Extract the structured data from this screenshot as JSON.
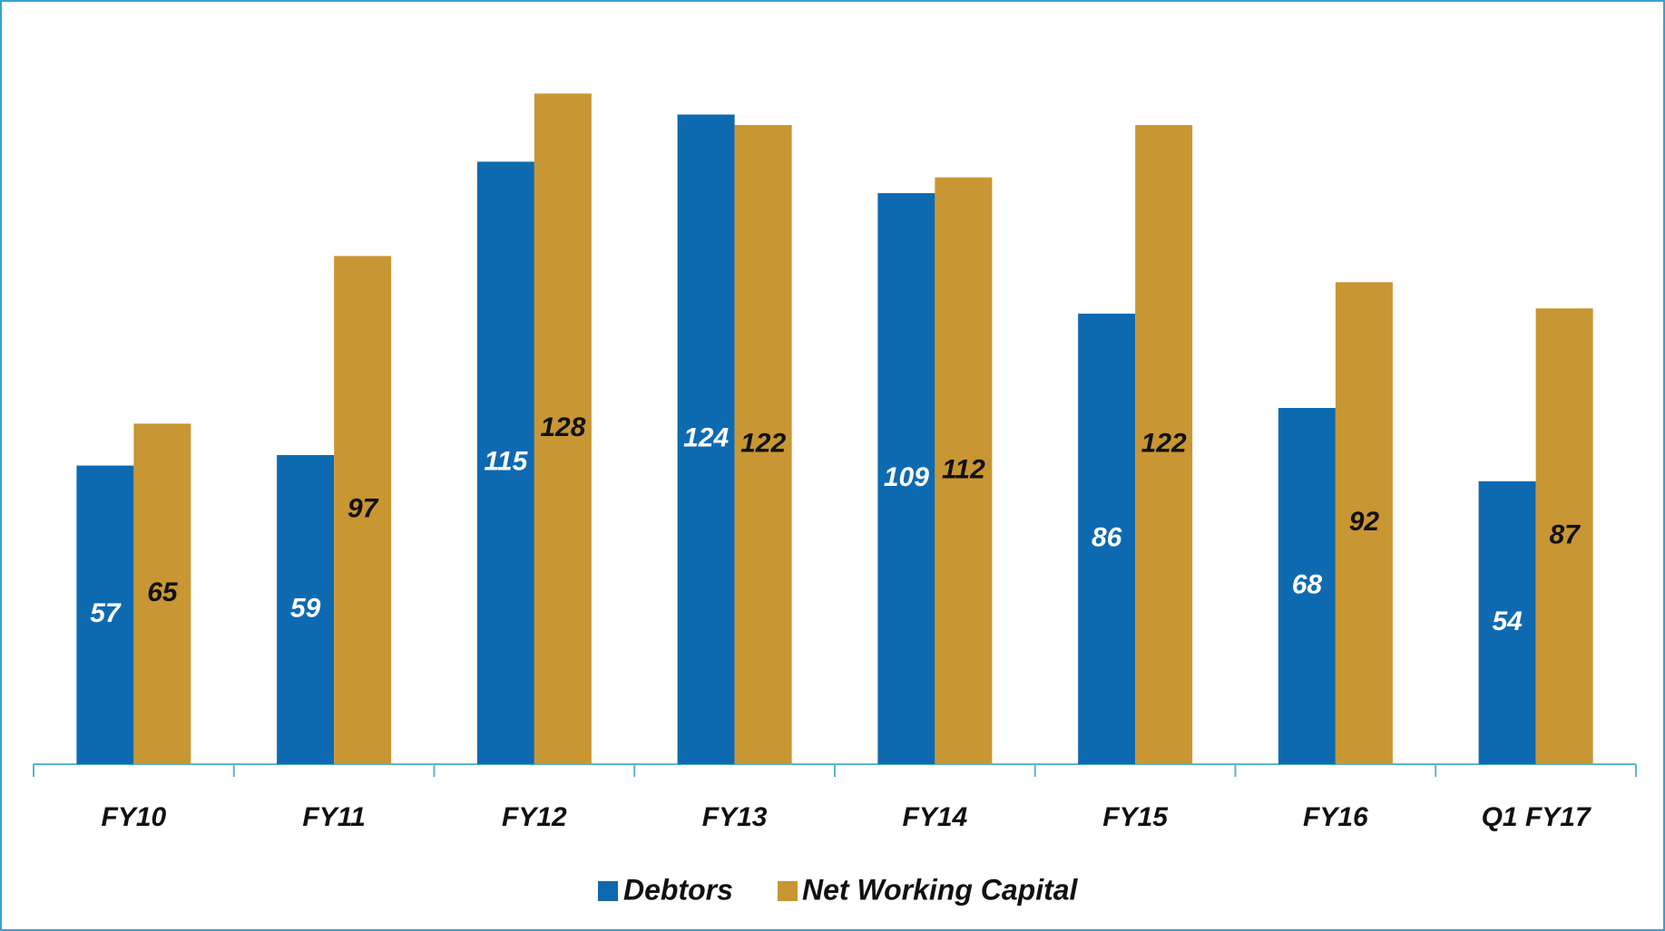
{
  "chart_data": {
    "type": "bar",
    "categories": [
      "FY10",
      "FY11",
      "FY12",
      "FY13",
      "FY14",
      "FY15",
      "FY16",
      "Q1 FY17"
    ],
    "series": [
      {
        "name": "Debtors",
        "color": "#0e6ab0",
        "values": [
          57,
          59,
          115,
          124,
          109,
          86,
          68,
          54
        ]
      },
      {
        "name": "Net Working Capital",
        "color": "#c89633",
        "values": [
          65,
          97,
          128,
          122,
          112,
          122,
          92,
          87
        ]
      }
    ],
    "ylim": [
      0,
      145
    ],
    "legend": "bottom"
  }
}
